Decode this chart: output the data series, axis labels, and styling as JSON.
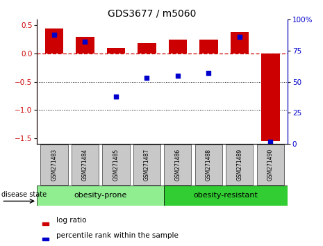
{
  "title": "GDS3677 / m5060",
  "samples": [
    "GSM271483",
    "GSM271484",
    "GSM271485",
    "GSM271487",
    "GSM271486",
    "GSM271488",
    "GSM271489",
    "GSM271490"
  ],
  "log_ratio": [
    0.45,
    0.3,
    0.1,
    0.18,
    0.25,
    0.25,
    0.38,
    -1.55
  ],
  "percentile_rank": [
    88,
    82,
    38,
    53,
    55,
    57,
    86,
    2
  ],
  "bar_color": "#CC0000",
  "blue_color": "#0000CC",
  "ylim": [
    -1.6,
    0.6
  ],
  "yticks_left": [
    0.5,
    0,
    -0.5,
    -1.0,
    -1.5
  ],
  "yticks_right": [
    100,
    75,
    50,
    25,
    0
  ],
  "hline_zero_color": "#CC0000",
  "hline_dotted_vals": [
    -0.5,
    -1.0
  ],
  "label_log_ratio": "log ratio",
  "label_percentile": "percentile rank within the sample",
  "disease_state_label": "disease state",
  "prone_color": "#90EE90",
  "resistant_color": "#32CD32",
  "prone_label": "obesity-prone",
  "resistant_label": "obesity-resistant",
  "prone_count": 4,
  "resistant_count": 4
}
